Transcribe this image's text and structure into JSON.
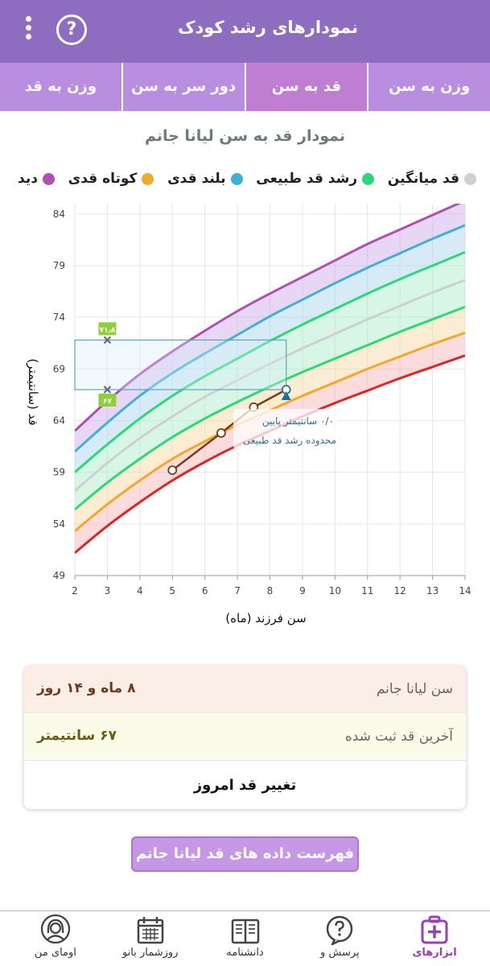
{
  "header": {
    "title": "نمودارهای رشد کودک",
    "menu_icon": "more-vertical-icon",
    "help_icon": "help-circle-icon",
    "help_glyph": "?",
    "color": "#8e6cc0"
  },
  "tabs": [
    {
      "label": "وزن به سن",
      "active": false
    },
    {
      "label": "قد به سن",
      "active": true
    },
    {
      "label": "دور سر به سن",
      "active": false
    },
    {
      "label": "وزن به قد",
      "active": false
    }
  ],
  "chart_title": "نمودار قد به سن لیانا جانم",
  "legend": [
    {
      "label": "دید",
      "color": "#b04fb4"
    },
    {
      "label": "کوتاه قدی",
      "color": "#f1a92c"
    },
    {
      "label": "بلند قدی",
      "color": "#3fb1d6"
    },
    {
      "label": "رشد قد طبیعی",
      "color": "#2bd87a"
    },
    {
      "label": "قد میانگین",
      "color": "#cfcfcf"
    }
  ],
  "chart_data": {
    "type": "line",
    "xlabel": "سن فرزند (ماه)",
    "ylabel": "قد (سانتیمتر)",
    "xlim": [
      2,
      14
    ],
    "ylim": [
      49,
      85
    ],
    "xticks": [
      2,
      3,
      4,
      5,
      6,
      7,
      8,
      9,
      10,
      11,
      12,
      13,
      14
    ],
    "yticks": [
      49,
      54,
      59,
      64,
      69,
      74,
      79,
      84
    ],
    "grid": true,
    "x": [
      2,
      3,
      4,
      5,
      6,
      7,
      8,
      9,
      10,
      11,
      12,
      13,
      14
    ],
    "series": [
      {
        "name": "دید",
        "color": "#b04fb4",
        "values": [
          63.0,
          65.9,
          68.5,
          70.7,
          72.7,
          74.6,
          76.3,
          77.9,
          79.5,
          81.1,
          82.5,
          83.9,
          85.3
        ]
      },
      {
        "color": "#3fb1d6",
        "values": [
          61.0,
          63.8,
          66.4,
          68.6,
          70.5,
          72.3,
          74.1,
          75.7,
          77.3,
          78.8,
          80.2,
          81.6,
          82.9
        ]
      },
      {
        "color": "#2bd87a",
        "values": [
          59.0,
          61.7,
          64.2,
          66.4,
          68.3,
          70.0,
          71.7,
          73.3,
          74.8,
          76.3,
          77.7,
          79.0,
          80.3
        ]
      },
      {
        "color": "#cfcfcf",
        "values": [
          57.2,
          59.9,
          62.3,
          64.4,
          66.3,
          67.9,
          69.5,
          71.0,
          72.4,
          73.8,
          75.1,
          76.4,
          77.6
        ]
      },
      {
        "color": "#2bd87a",
        "values": [
          55.4,
          58.0,
          60.3,
          62.4,
          64.2,
          65.8,
          67.3,
          68.7,
          70.0,
          71.3,
          72.6,
          73.8,
          75.0
        ]
      },
      {
        "color": "#f1a92c",
        "values": [
          53.3,
          55.9,
          58.2,
          60.3,
          62.0,
          63.6,
          65.0,
          66.4,
          67.7,
          69.0,
          70.2,
          71.4,
          72.5
        ]
      },
      {
        "color": "#e02424",
        "values": [
          51.2,
          53.8,
          56.1,
          58.2,
          60.0,
          61.6,
          63.0,
          64.4,
          65.7,
          66.9,
          68.1,
          69.2,
          70.3
        ]
      },
      {
        "color": "#7a3c14",
        "x": [
          5,
          6.5,
          7.5,
          8.5
        ],
        "values": [
          59.2,
          62.8,
          65.3,
          67.0
        ]
      }
    ],
    "markers": [
      {
        "x": 3,
        "y": 71.8,
        "label": "۷۱٫۸"
      },
      {
        "x": 3,
        "y": 67,
        "label": "۶۷"
      }
    ],
    "annotation": "۰/۰ سانتیمتر پایین محدوده رشد قد طبیعی"
  },
  "info": {
    "age_label": "سن لیانا جانم",
    "age_value": "۸ ماه و ۱۴ روز",
    "height_label": "آخرین قد ثبت شده",
    "height_value": "۶۷ سانتیمتر"
  },
  "change_button": "تغییر قد امروز",
  "list_button": "فهرست داده های قد لیانا جانم",
  "bottom_nav": [
    {
      "label": "ابزارهای",
      "icon": "medical-kit-icon",
      "active": true
    },
    {
      "label": "پرسش و",
      "icon": "question-bubble-icon",
      "active": false
    },
    {
      "label": "دانشنامه",
      "icon": "book-icon",
      "active": false
    },
    {
      "label": "روزشمار بانو",
      "icon": "calendar-icon",
      "active": false
    },
    {
      "label": "اومای من",
      "icon": "woman-avatar-icon",
      "active": false
    }
  ]
}
